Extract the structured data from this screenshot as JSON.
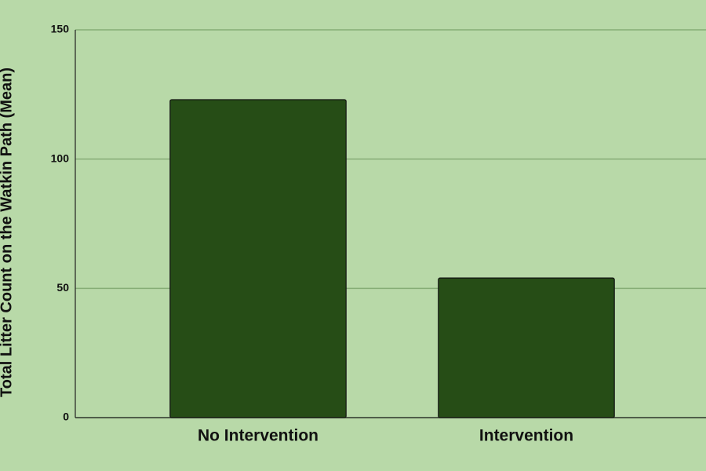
{
  "chart_data": {
    "type": "bar",
    "y_label": "Total Litter Count on the Watkin Path (Mean)",
    "categories": [
      "No Intervention",
      "Intervention"
    ],
    "values": [
      123,
      54
    ],
    "color": "#264d16",
    "ylim": [
      0,
      150
    ],
    "yticks": [
      0,
      50,
      100,
      150
    ],
    "grid": true
  }
}
